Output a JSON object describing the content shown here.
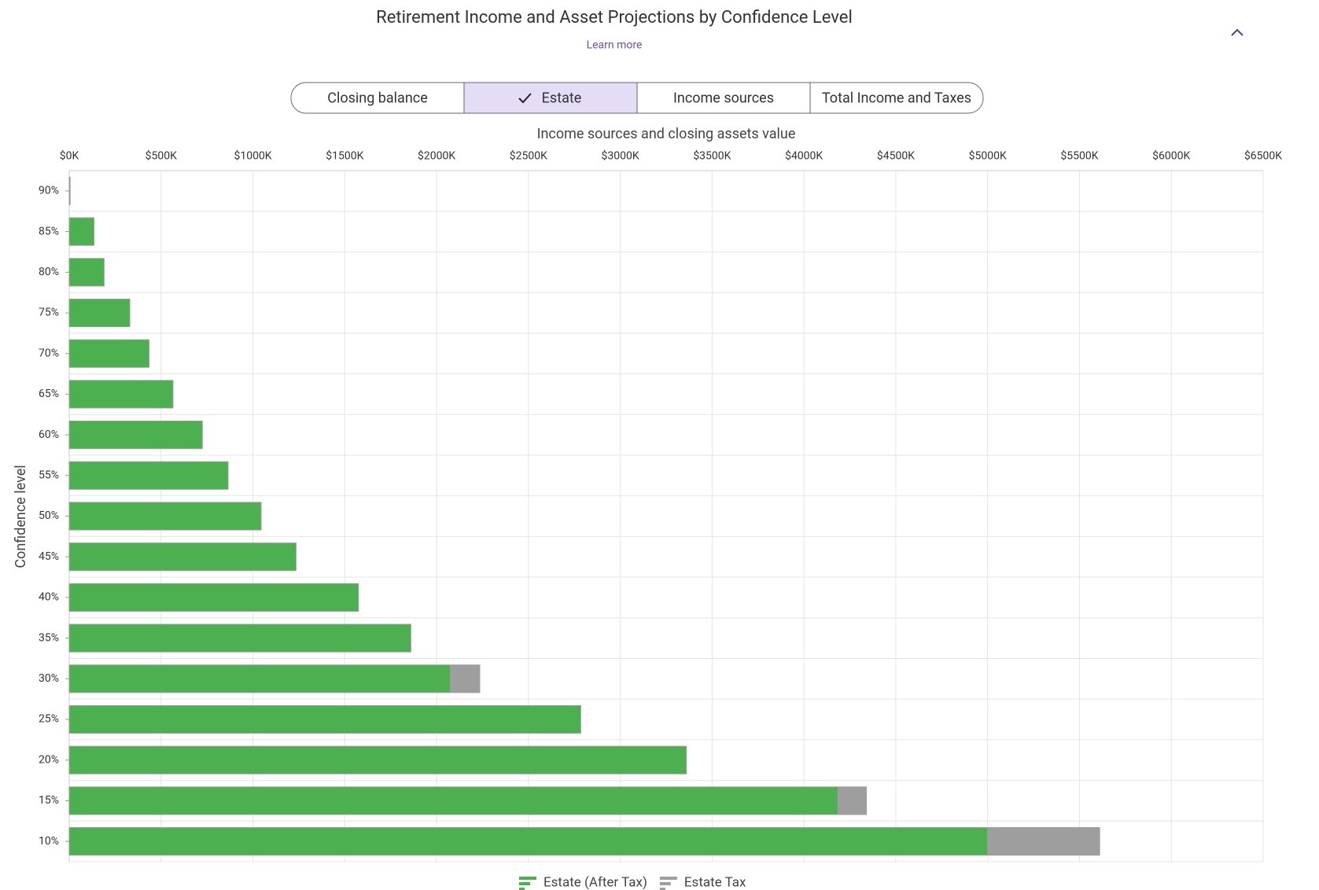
{
  "tabs": [
    "Closing balance",
    "Estate",
    "Income sources",
    "Total Income and Taxes"
  ],
  "selected_tab": 1,
  "learn_more": "Learn more",
  "chart_data": {
    "type": "bar",
    "orientation": "horizontal",
    "stacked": true,
    "title": "Retirement Income and Asset Projections by Confidence Level",
    "x_label": "Income sources and closing assets value",
    "y_label": "Confidence level",
    "categories": [
      "90%",
      "85%",
      "80%",
      "75%",
      "70%",
      "65%",
      "60%",
      "55%",
      "50%",
      "45%",
      "40%",
      "35%",
      "30%",
      "25%",
      "20%",
      "15%",
      "10%"
    ],
    "series": [
      {
        "name": "Estate (After Tax)",
        "color": "#4caf50",
        "values": [
          5,
          135,
          190,
          330,
          435,
          565,
          725,
          865,
          1045,
          1235,
          1575,
          1860,
          2075,
          2785,
          3360,
          4185,
          5000
        ]
      },
      {
        "name": "Estate Tax",
        "color": "#9e9e9e",
        "values": [
          0,
          0,
          0,
          0,
          0,
          0,
          0,
          0,
          0,
          0,
          0,
          0,
          160,
          0,
          0,
          155,
          610
        ]
      }
    ],
    "xlim": [
      0,
      6500
    ],
    "xticks": [
      {
        "value": 0,
        "label": "$0K"
      },
      {
        "value": 500,
        "label": "$500K"
      },
      {
        "value": 1000,
        "label": "$1000K"
      },
      {
        "value": 1500,
        "label": "$1500K"
      },
      {
        "value": 2000,
        "label": "$2000K"
      },
      {
        "value": 2500,
        "label": "$2500K"
      },
      {
        "value": 3000,
        "label": "$3000K"
      },
      {
        "value": 3500,
        "label": "$3500K"
      },
      {
        "value": 4000,
        "label": "$4000K"
      },
      {
        "value": 4500,
        "label": "$4500K"
      },
      {
        "value": 5000,
        "label": "$5000K"
      },
      {
        "value": 5500,
        "label": "$5500K"
      },
      {
        "value": 6000,
        "label": "$6000K"
      },
      {
        "value": 6500,
        "label": "$6500K"
      }
    ],
    "grid": true,
    "legend": "bottom"
  }
}
